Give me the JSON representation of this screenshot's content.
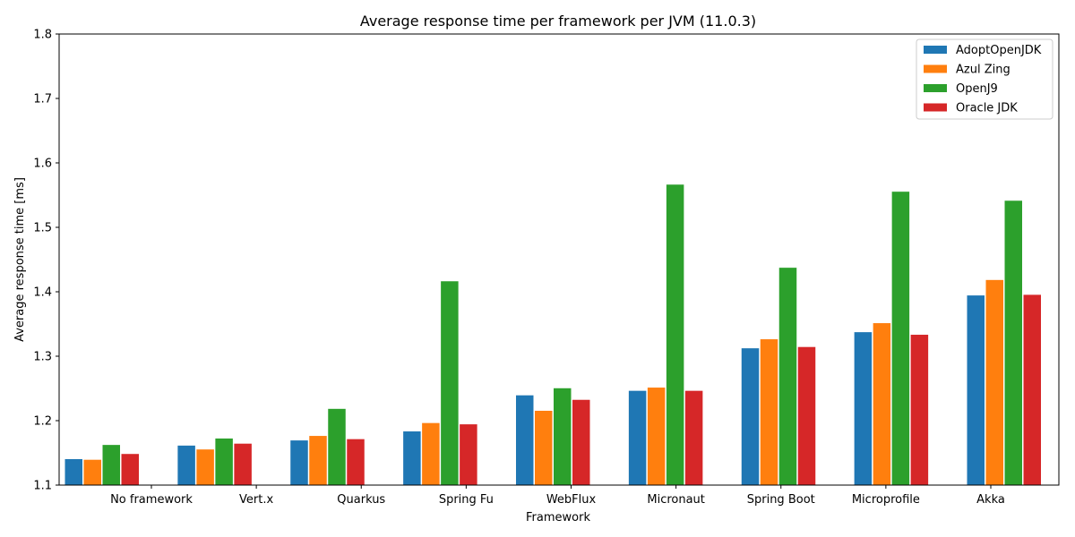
{
  "chart_data": {
    "type": "bar",
    "title": "Average response time per framework per JVM (11.0.3)",
    "xlabel": "Framework",
    "ylabel": "Average response time [ms]",
    "ylim": [
      1.1,
      1.8
    ],
    "yticks": [
      "1.1",
      "1.2",
      "1.3",
      "1.4",
      "1.5",
      "1.6",
      "1.7",
      "1.8"
    ],
    "categories": [
      "No framework",
      "Vert.x",
      "Quarkus",
      "Spring Fu",
      "WebFlux",
      "Micronaut",
      "Spring Boot",
      "Microprofile",
      "Akka"
    ],
    "series": [
      {
        "name": "AdoptOpenJDK",
        "color": "#1f77b4",
        "values": [
          1.141,
          1.162,
          1.17,
          1.184,
          1.24,
          1.247,
          1.313,
          1.338,
          1.395
        ]
      },
      {
        "name": "Azul Zing",
        "color": "#ff7f0e",
        "values": [
          1.14,
          1.156,
          1.177,
          1.197,
          1.216,
          1.252,
          1.327,
          1.352,
          1.419
        ]
      },
      {
        "name": "OpenJ9",
        "color": "#2ca02c",
        "values": [
          1.163,
          1.173,
          1.219,
          1.417,
          1.251,
          1.567,
          1.438,
          1.556,
          1.542
        ]
      },
      {
        "name": "Oracle JDK",
        "color": "#d62728",
        "values": [
          1.149,
          1.165,
          1.172,
          1.195,
          1.233,
          1.247,
          1.315,
          1.334,
          1.396
        ]
      }
    ],
    "legend_position": "top-right",
    "grid": false
  }
}
